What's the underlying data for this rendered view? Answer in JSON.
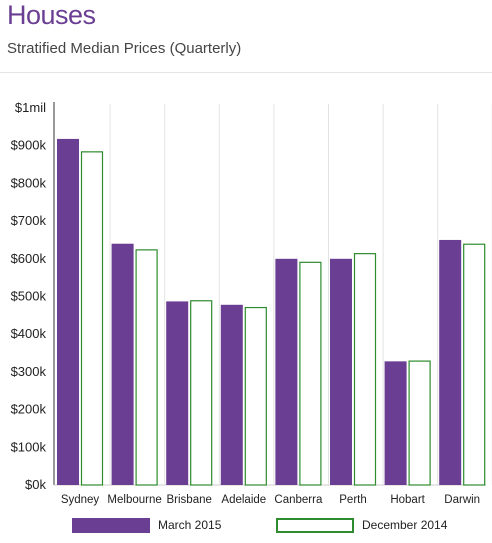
{
  "header": {
    "title": "Houses",
    "subtitle": "Stratified Median Prices (Quarterly)"
  },
  "colors": {
    "march": "#6a3e93",
    "december_outline": "#2e8b2e",
    "axis": "#333333"
  },
  "chart_data": {
    "type": "bar",
    "categories": [
      "Sydney",
      "Melbourne",
      "Brisbane",
      "Adelaide",
      "Canberra",
      "Perth",
      "Hobart",
      "Darwin"
    ],
    "series": [
      {
        "name": "March 2015",
        "values": [
          918,
          640,
          487,
          478,
          600,
          600,
          328,
          650
        ]
      },
      {
        "name": "December 2014",
        "values": [
          885,
          625,
          490,
          472,
          592,
          615,
          330,
          640
        ]
      }
    ],
    "ylim": [
      0,
      1000
    ],
    "yticks": [
      0,
      100,
      200,
      300,
      400,
      500,
      600,
      700,
      800,
      900,
      1000
    ],
    "ytick_labels": [
      "$0k",
      "$100k",
      "$200k",
      "$300k",
      "$400k",
      "$500k",
      "$600k",
      "$700k",
      "$800k",
      "$900k",
      "$1mil"
    ],
    "grid": false,
    "legend": "bottom"
  }
}
